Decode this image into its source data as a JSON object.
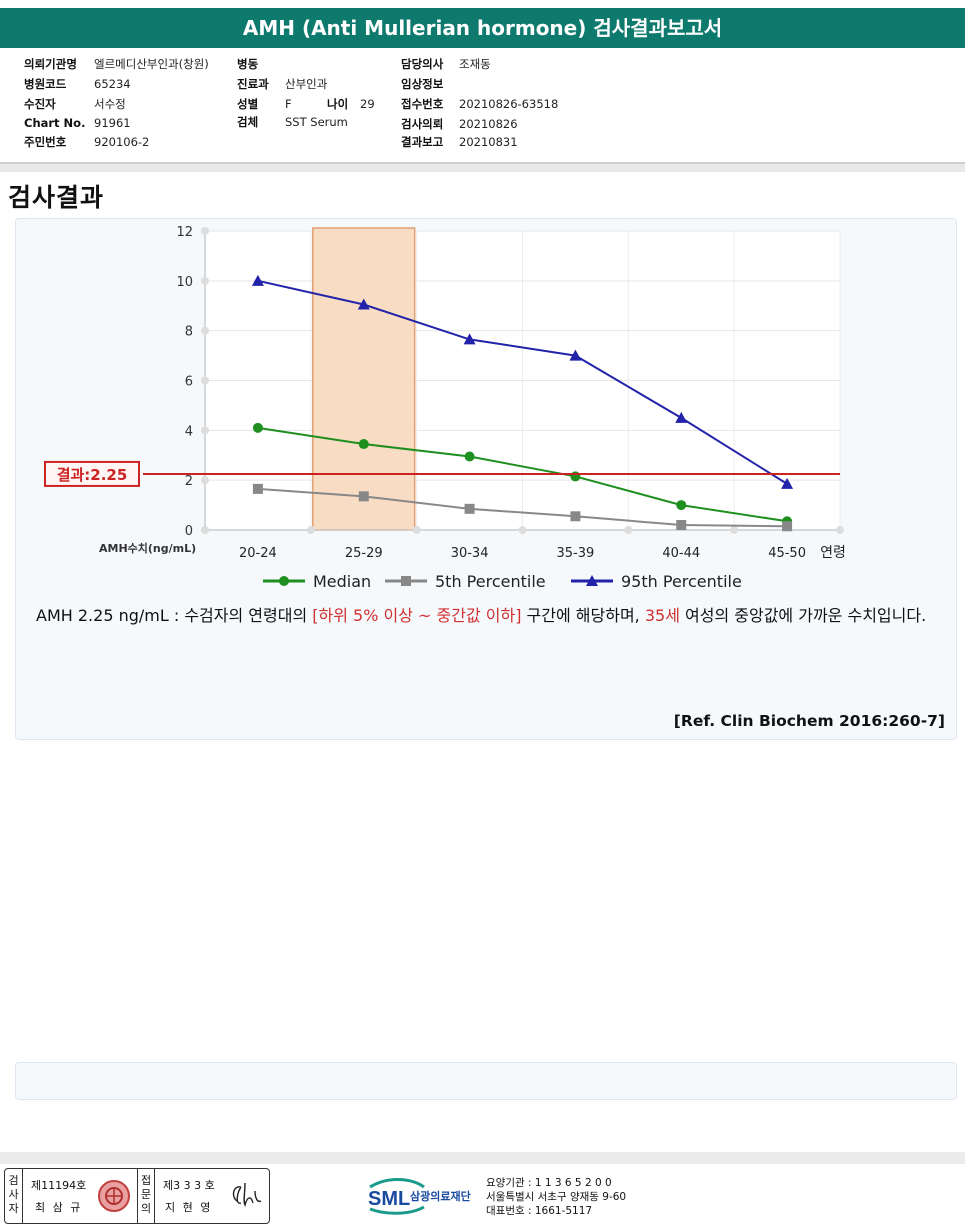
{
  "report_title": "AMH (Anti Mullerian hormone) 검사결과보고서",
  "info": {
    "col1": [
      {
        "label": "의뢰기관명",
        "value": "엘르메디산부인과(창원)"
      },
      {
        "label": "병원코드",
        "value": "65234"
      },
      {
        "label": "수진자",
        "value": "서수정"
      },
      {
        "label": "Chart No.",
        "value": "91961"
      },
      {
        "label": "주민번호",
        "value": "920106-2"
      }
    ],
    "col2": [
      {
        "label": "병동",
        "value": ""
      },
      {
        "label": "진료과",
        "value": "산부인과"
      },
      {
        "label": "성별",
        "value": "F"
      },
      {
        "label": "검체",
        "value": "SST Serum"
      }
    ],
    "age": {
      "label": "나이",
      "value": "29"
    },
    "col3": [
      {
        "label": "담당의사",
        "value": "조재동"
      },
      {
        "label": "임상정보",
        "value": ""
      },
      {
        "label": "접수번호",
        "value": "20210826-63518"
      },
      {
        "label": "검사의뢰",
        "value": "20210826"
      },
      {
        "label": "결과보고",
        "value": "20210831"
      }
    ]
  },
  "section_title": "검사결과",
  "chart_data": {
    "type": "line",
    "categories": [
      "20-24",
      "25-29",
      "30-34",
      "35-39",
      "40-44",
      "45-50"
    ],
    "xlabel_suffix": "연령",
    "ylabel": "AMH수치(ng/mL)",
    "ylim": [
      0,
      12
    ],
    "yticks": [
      "0",
      "2",
      "4",
      "6",
      "8",
      "10",
      "12"
    ],
    "highlight_category": "25-29",
    "series": [
      {
        "name": "Median",
        "color": "#1f8f1f",
        "marker": "circle",
        "values": [
          4.1,
          3.45,
          2.95,
          2.15,
          1.0,
          0.35
        ]
      },
      {
        "name": "5th Percentile",
        "color": "#888888",
        "marker": "square",
        "values": [
          1.65,
          1.35,
          0.85,
          0.55,
          0.2,
          0.15
        ]
      },
      {
        "name": "95th Percentile",
        "color": "#2222aa",
        "marker": "triangle",
        "values": [
          10.0,
          9.05,
          7.65,
          7.0,
          4.5,
          1.85
        ]
      }
    ],
    "result_line": {
      "label": "결과:2.25",
      "value": 2.25,
      "color": "#cc2222"
    },
    "grid": true,
    "legend_position": "bottom"
  },
  "description": {
    "prefix": "AMH  2.25 ng/mL : 수검자의 연령대의 ",
    "range_text": "[하위 5% 이상 ~ 중간값 이하]",
    "middle": "  구간에 해당하며, ",
    "age_text": "35세",
    "suffix": " 여성의 중앙값에 가까운 수치입니다."
  },
  "reference": "[Ref. Clin Biochem 2016:260-7]",
  "signature": {
    "tester_label": "검사자",
    "tester_no": "제11194호",
    "tester_name": "최 삼 규",
    "reviewer_label": "접문의",
    "reviewer_no": "제3 3 3 호",
    "reviewer_name": "지 현 영"
  },
  "organization": {
    "logo_text": "SML",
    "name": "삼광의료재단",
    "line1": "요양기관 : 1 1 3 6 5 2 0 0",
    "line2": "서울특별시 서초구 양재동 9-60",
    "line3": "대표번호 : 1661-5117"
  },
  "colors": {
    "title_bar": "#0e7a6e",
    "highlight": "#f8dcc4",
    "result_line": "#cc2222"
  }
}
